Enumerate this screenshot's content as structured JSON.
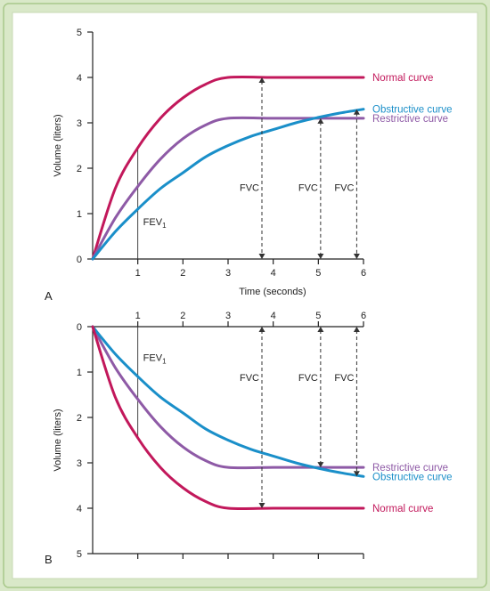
{
  "chart_data": [
    {
      "type": "line",
      "panel_label": "A",
      "xlabel": "Time (seconds)",
      "ylabel": "Volume (liters)",
      "xlim": [
        0,
        6
      ],
      "ylim": [
        0,
        5
      ],
      "x_ticks": [
        "1",
        "2",
        "3",
        "4",
        "5",
        "6"
      ],
      "y_ticks": [
        "0",
        "1",
        "2",
        "3",
        "4",
        "5"
      ],
      "y_inverted": false,
      "series": [
        {
          "name": "Normal curve",
          "color": "#c2185b",
          "x": [
            0,
            0.5,
            1,
            1.5,
            2,
            2.5,
            3,
            4,
            5,
            6
          ],
          "y": [
            0,
            1.55,
            2.45,
            3.1,
            3.55,
            3.85,
            4.0,
            4.0,
            4.0,
            4.0
          ]
        },
        {
          "name": "Restrictive curve",
          "color": "#8e5aa6",
          "x": [
            0,
            0.5,
            1,
            1.5,
            2,
            2.5,
            3,
            4,
            5,
            6
          ],
          "y": [
            0,
            0.9,
            1.6,
            2.2,
            2.65,
            2.95,
            3.1,
            3.1,
            3.1,
            3.1
          ]
        },
        {
          "name": "Obstructive curve",
          "color": "#1a8fc9",
          "x": [
            0,
            0.5,
            1,
            1.5,
            2,
            2.5,
            3,
            3.5,
            4,
            4.5,
            5,
            5.5,
            6
          ],
          "y": [
            0,
            0.6,
            1.1,
            1.55,
            1.9,
            2.25,
            2.5,
            2.7,
            2.85,
            3.0,
            3.12,
            3.22,
            3.3
          ]
        }
      ],
      "annotations": [
        {
          "text": "FEV",
          "subscript": "1",
          "x": 1
        },
        {
          "text": "FVC",
          "x": 3.75
        },
        {
          "text": "FVC",
          "x": 5.05
        },
        {
          "text": "FVC",
          "x": 5.85
        }
      ]
    },
    {
      "type": "line",
      "panel_label": "B",
      "xlabel": "",
      "ylabel": "Volume (liters)",
      "xlim": [
        0,
        6
      ],
      "ylim": [
        0,
        5
      ],
      "x_ticks": [
        "1",
        "2",
        "3",
        "4",
        "5",
        "6"
      ],
      "y_ticks": [
        "0",
        "1",
        "2",
        "3",
        "4",
        "5"
      ],
      "y_inverted": true,
      "series": [
        {
          "name": "Restrictive curve",
          "color": "#8e5aa6",
          "x": [
            0,
            0.5,
            1,
            1.5,
            2,
            2.5,
            3,
            4,
            5,
            6
          ],
          "y": [
            0,
            0.9,
            1.6,
            2.2,
            2.65,
            2.95,
            3.1,
            3.1,
            3.1,
            3.1
          ]
        },
        {
          "name": "Obstructive curve",
          "color": "#1a8fc9",
          "x": [
            0,
            0.5,
            1,
            1.5,
            2,
            2.5,
            3,
            3.5,
            4,
            4.5,
            5,
            5.5,
            6
          ],
          "y": [
            0,
            0.6,
            1.1,
            1.55,
            1.9,
            2.25,
            2.5,
            2.7,
            2.85,
            3.0,
            3.12,
            3.22,
            3.3
          ]
        },
        {
          "name": "Normal curve",
          "color": "#c2185b",
          "x": [
            0,
            0.5,
            1,
            1.5,
            2,
            2.5,
            3,
            4,
            5,
            6
          ],
          "y": [
            0,
            1.55,
            2.45,
            3.1,
            3.55,
            3.85,
            4.0,
            4.0,
            4.0,
            4.0
          ]
        }
      ],
      "annotations": [
        {
          "text": "FEV",
          "subscript": "1",
          "x": 1
        },
        {
          "text": "FVC",
          "x": 3.75
        },
        {
          "text": "FVC",
          "x": 5.05
        },
        {
          "text": "FVC",
          "x": 5.85
        }
      ]
    }
  ],
  "style": {
    "frame_outer": "#d9e8c8",
    "frame_border": "#a8c88a",
    "panel_bg": "#ffffff",
    "axis_color": "#222222"
  }
}
